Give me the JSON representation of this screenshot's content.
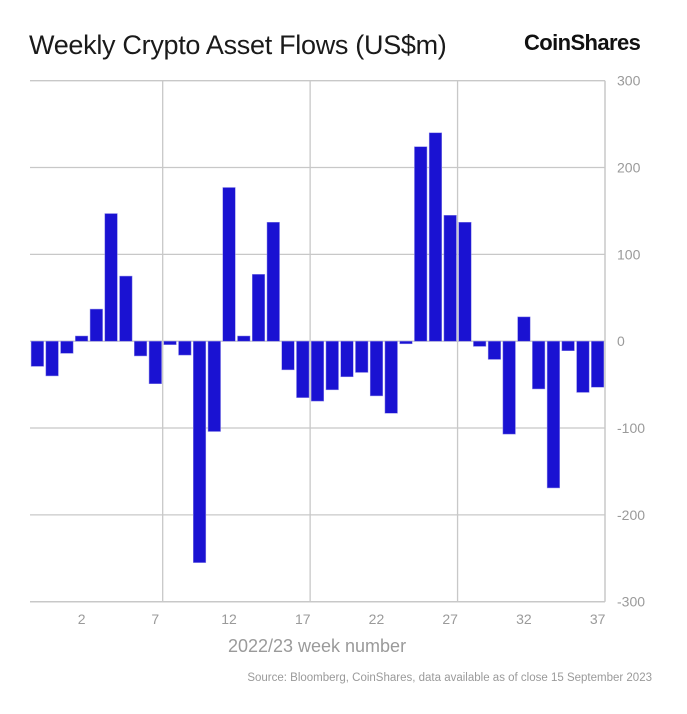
{
  "header": {
    "title": "Weekly Crypto Asset Flows (US$m)",
    "brand": "CoinShares"
  },
  "footer": {
    "source": "Source: Bloomberg, CoinShares, data available as of close 15 September 2023"
  },
  "colors": {
    "bar": "#1a12d2",
    "grid": "#c8c8c8",
    "tick_text": "#9a9a9a"
  },
  "chart_data": {
    "type": "bar",
    "title": "Weekly Crypto Asset Flows (US$m)",
    "xlabel": "2022/23 week number",
    "ylabel": "",
    "ylim": [
      -300,
      300
    ],
    "yticks": [
      300,
      200,
      100,
      0,
      -100,
      -200,
      -300
    ],
    "y_axis_side": "right",
    "grid": true,
    "legend": "none",
    "categories": [
      "51",
      "52",
      "1",
      "2",
      "3",
      "4",
      "5",
      "6",
      "7",
      "8",
      "9",
      "10",
      "11",
      "12",
      "13",
      "14",
      "15",
      "16",
      "17",
      "18",
      "19",
      "20",
      "21",
      "22",
      "23",
      "24",
      "25",
      "26",
      "27",
      "28",
      "29",
      "30",
      "31",
      "32",
      "33",
      "34",
      "35",
      "36",
      "37"
    ],
    "xtick_labels": [
      "2",
      "7",
      "12",
      "17",
      "22",
      "27",
      "32",
      "37"
    ],
    "series": [
      {
        "name": "Weekly flows (US$m)",
        "values": [
          -29,
          -40,
          -14,
          6,
          37,
          147,
          75,
          -17,
          -49,
          -4,
          -16,
          -255,
          -104,
          177,
          6,
          77,
          137,
          -33,
          -65,
          -69,
          -56,
          -41,
          -36,
          -63,
          -83,
          -3,
          224,
          240,
          145,
          137,
          -6,
          -21,
          -107,
          28,
          -55,
          -169,
          -11,
          -59,
          -53
        ]
      }
    ]
  }
}
